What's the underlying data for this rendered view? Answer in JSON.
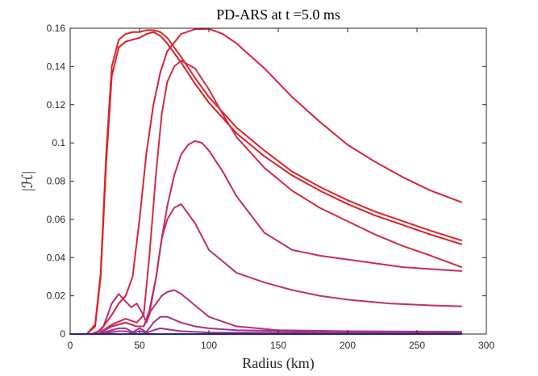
{
  "chart_data": {
    "type": "line",
    "title": "PD-ARS at t =5.0 ms",
    "xlabel": "Radius (km)",
    "ylabel": "|ℋ|",
    "xlim": [
      0,
      300
    ],
    "ylim": [
      0,
      0.16
    ],
    "x_ticks": [
      0,
      50,
      100,
      150,
      200,
      250,
      300
    ],
    "y_ticks": [
      0,
      0.02,
      0.04,
      0.06,
      0.08,
      0.1,
      0.12,
      0.14,
      0.16
    ],
    "x_tick_labels": [
      "0",
      "50",
      "100",
      "150",
      "200",
      "250",
      "300"
    ],
    "y_tick_labels": [
      "0",
      "0.02",
      "0.04",
      "0.06",
      "0.08",
      "0.1",
      "0.12",
      "0.14",
      "0.16"
    ],
    "grid": false,
    "legend": "none",
    "series": [
      {
        "color": "#dc1d2a",
        "x": [
          0,
          12,
          18,
          22,
          26,
          30,
          35,
          40,
          45,
          50,
          55,
          60,
          65,
          70,
          80,
          90,
          100,
          120,
          140,
          160,
          180,
          200,
          220,
          240,
          260,
          282
        ],
        "values": [
          0,
          0,
          0.004,
          0.03,
          0.09,
          0.135,
          0.15,
          0.153,
          0.154,
          0.155,
          0.157,
          0.158,
          0.156,
          0.152,
          0.142,
          0.131,
          0.121,
          0.105,
          0.093,
          0.083,
          0.075,
          0.068,
          0.062,
          0.057,
          0.052,
          0.047
        ]
      },
      {
        "color": "#e02226",
        "x": [
          0,
          12,
          18,
          22,
          26,
          30,
          35,
          40,
          45,
          50,
          55,
          60,
          65,
          70,
          80,
          90,
          100,
          120,
          140,
          160,
          180,
          200,
          220,
          240,
          260,
          282
        ],
        "values": [
          0,
          0,
          0.005,
          0.032,
          0.095,
          0.14,
          0.154,
          0.157,
          0.158,
          0.158,
          0.159,
          0.159,
          0.158,
          0.155,
          0.145,
          0.134,
          0.124,
          0.108,
          0.096,
          0.085,
          0.077,
          0.07,
          0.064,
          0.059,
          0.054,
          0.049
        ]
      },
      {
        "color": "#d8223a",
        "x": [
          0,
          15,
          22,
          30,
          35,
          40,
          45,
          50,
          55,
          60,
          65,
          70,
          80,
          90,
          100,
          110,
          120,
          140,
          160,
          180,
          200,
          220,
          240,
          260,
          282
        ],
        "values": [
          0,
          0,
          0.002,
          0.01,
          0.016,
          0.02,
          0.03,
          0.06,
          0.095,
          0.12,
          0.137,
          0.148,
          0.157,
          0.1595,
          0.1597,
          0.157,
          0.152,
          0.139,
          0.124,
          0.111,
          0.099,
          0.09,
          0.082,
          0.075,
          0.069
        ]
      },
      {
        "color": "#d42a44",
        "x": [
          0,
          20,
          30,
          40,
          48,
          53,
          57,
          62,
          66,
          70,
          75,
          80,
          90,
          100,
          110,
          120,
          140,
          160,
          180,
          200,
          220,
          240,
          260,
          282
        ],
        "values": [
          0,
          0,
          0.005,
          0.008,
          0.006,
          0.01,
          0.04,
          0.085,
          0.115,
          0.132,
          0.14,
          0.143,
          0.139,
          0.128,
          0.115,
          0.103,
          0.087,
          0.075,
          0.066,
          0.059,
          0.052,
          0.046,
          0.041,
          0.035
        ]
      },
      {
        "color": "#c82a5c",
        "x": [
          0,
          20,
          30,
          40,
          48,
          53,
          57,
          62,
          66,
          70,
          75,
          80,
          85,
          90,
          95,
          100,
          110,
          120,
          140,
          160,
          180,
          200,
          220,
          240,
          260,
          282
        ],
        "values": [
          0,
          0,
          0.004,
          0.006,
          0.004,
          0.004,
          0.012,
          0.03,
          0.05,
          0.067,
          0.083,
          0.094,
          0.099,
          0.101,
          0.1,
          0.096,
          0.085,
          0.072,
          0.053,
          0.044,
          0.041,
          0.039,
          0.037,
          0.035,
          0.034,
          0.033
        ]
      },
      {
        "color": "#c02e68",
        "x": [
          0,
          20,
          30,
          40,
          48,
          53,
          57,
          62,
          66,
          70,
          75,
          80,
          90,
          100,
          120,
          140,
          160,
          180,
          200,
          230,
          260,
          282
        ],
        "values": [
          0,
          0,
          0.004,
          0.006,
          0.004,
          0.004,
          0.01,
          0.03,
          0.05,
          0.06,
          0.066,
          0.068,
          0.058,
          0.044,
          0.032,
          0.027,
          0.023,
          0.02,
          0.018,
          0.016,
          0.015,
          0.0145
        ]
      },
      {
        "color": "#b82e74",
        "x": [
          0,
          18,
          24,
          30,
          35,
          40,
          44,
          48,
          52,
          55,
          58,
          62,
          66,
          70,
          75,
          80,
          90,
          100,
          120,
          150,
          200,
          250,
          282
        ],
        "values": [
          0,
          0,
          0.004,
          0.016,
          0.021,
          0.017,
          0.014,
          0.016,
          0.011,
          0.006,
          0.012,
          0.016,
          0.02,
          0.022,
          0.023,
          0.021,
          0.015,
          0.009,
          0.004,
          0.002,
          0.0015,
          0.0013,
          0.0012
        ]
      },
      {
        "color": "#a8327e",
        "x": [
          0,
          20,
          30,
          35,
          40,
          45,
          50,
          55,
          60,
          65,
          70,
          80,
          90,
          100,
          120,
          160,
          200,
          282
        ],
        "values": [
          0,
          0,
          0.002,
          0.003,
          0.003,
          0.001,
          0.003,
          0.001,
          0.006,
          0.009,
          0.009,
          0.006,
          0.004,
          0.003,
          0.002,
          0.0015,
          0.0012,
          0.001
        ]
      },
      {
        "color": "#9a3586",
        "x": [
          0,
          20,
          30,
          35,
          40,
          45,
          50,
          55,
          60,
          65,
          70,
          80,
          100,
          282
        ],
        "values": [
          0,
          0,
          0.001,
          0.0015,
          0.0015,
          0.0005,
          0.0015,
          0.0005,
          0.002,
          0.003,
          0.0025,
          0.0015,
          0.0008,
          0.0004
        ]
      },
      {
        "color": "#2020ff",
        "x": [
          0,
          282
        ],
        "values": [
          0,
          0
        ]
      }
    ]
  }
}
